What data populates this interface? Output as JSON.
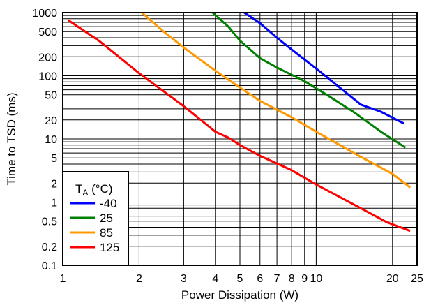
{
  "chart_data": {
    "type": "line",
    "title": "",
    "xlabel": "Power Dissipation (W)",
    "ylabel": "Time to TSD (ms)",
    "xscale": "log",
    "yscale": "log",
    "xlim": [
      1,
      25
    ],
    "ylim": [
      0.1,
      1000
    ],
    "grid": true,
    "legend_position": "bottom-left",
    "legend": {
      "title_main": "T",
      "title_sub": "A",
      "title_unit": " (°C)"
    },
    "x_ticks": [
      {
        "value": 1,
        "label": "1"
      },
      {
        "value": 2,
        "label": "2"
      },
      {
        "value": 3,
        "label": "3"
      },
      {
        "value": 4,
        "label": "4"
      },
      {
        "value": 5,
        "label": "5"
      },
      {
        "value": 6,
        "label": "6"
      },
      {
        "value": 7,
        "label": "7"
      },
      {
        "value": 8,
        "label": "8"
      },
      {
        "value": 9,
        "label": "9"
      },
      {
        "value": 10,
        "label": "10"
      },
      {
        "value": 20,
        "label": "20"
      },
      {
        "value": 25,
        "label": "25"
      }
    ],
    "x_gridlines": [
      1,
      2,
      3,
      4,
      5,
      6,
      7,
      8,
      9,
      10,
      20,
      25
    ],
    "y_ticks": [
      {
        "value": 0.1,
        "label": "0.1"
      },
      {
        "value": 0.2,
        "label": "0.2"
      },
      {
        "value": 0.5,
        "label": "0.5"
      },
      {
        "value": 1,
        "label": "1"
      },
      {
        "value": 2,
        "label": "2"
      },
      {
        "value": 5,
        "label": "5"
      },
      {
        "value": 10,
        "label": "10"
      },
      {
        "value": 20,
        "label": "20"
      },
      {
        "value": 50,
        "label": "50"
      },
      {
        "value": 100,
        "label": "100"
      },
      {
        "value": 200,
        "label": "200"
      },
      {
        "value": 500,
        "label": "500"
      },
      {
        "value": 1000,
        "label": "1000"
      }
    ],
    "y_gridlines": [
      0.1,
      0.2,
      0.3,
      0.4,
      0.5,
      0.6,
      0.7,
      0.8,
      0.9,
      1,
      2,
      3,
      4,
      5,
      6,
      7,
      8,
      9,
      10,
      20,
      30,
      40,
      50,
      60,
      70,
      80,
      90,
      100,
      200,
      300,
      400,
      500,
      600,
      700,
      800,
      900,
      1000
    ],
    "series": [
      {
        "name": "-40",
        "color": "#0000ff",
        "x": [
          5.2,
          6,
          7,
          8,
          10,
          12,
          15,
          18,
          22.2
        ],
        "y": [
          1000,
          680,
          400,
          260,
          130,
          72,
          35,
          27,
          17.5
        ]
      },
      {
        "name": "25",
        "color": "#008000",
        "x": [
          3.9,
          4.5,
          5,
          6,
          7,
          9,
          11,
          14,
          18,
          22.5
        ],
        "y": [
          1000,
          600,
          360,
          190,
          135,
          82,
          50,
          27,
          13,
          7.3
        ]
      },
      {
        "name": "85",
        "color": "#ff9900",
        "x": [
          2.05,
          2.5,
          3,
          4,
          5,
          6,
          8,
          10,
          15,
          20,
          23.5
        ],
        "y": [
          1000,
          500,
          280,
          120,
          65,
          40,
          22,
          13,
          5.2,
          2.8,
          1.7
        ]
      },
      {
        "name": "125",
        "color": "#ff0000",
        "x": [
          1.05,
          1.4,
          2,
          3,
          4,
          4.5,
          5,
          6,
          8,
          10,
          15,
          19,
          23.5
        ],
        "y": [
          760,
          350,
          110,
          33,
          13,
          10.5,
          8,
          5.4,
          3.2,
          1.9,
          0.8,
          0.48,
          0.35
        ]
      }
    ]
  }
}
